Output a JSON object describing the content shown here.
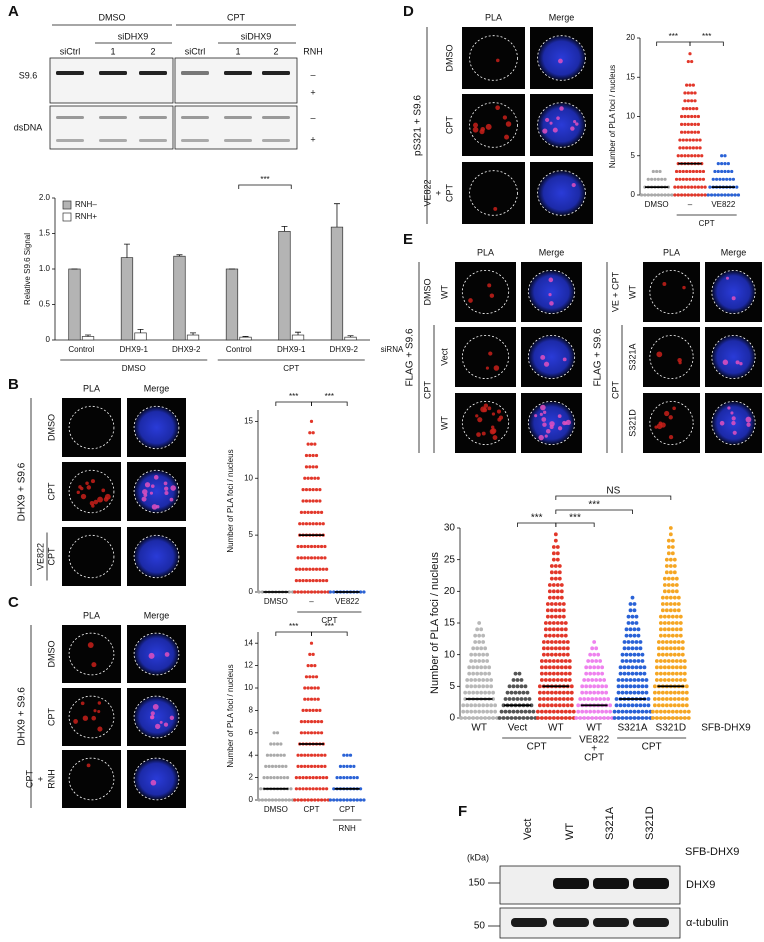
{
  "panel_letters": [
    "A",
    "B",
    "C",
    "D",
    "E",
    "F"
  ],
  "blot_A": {
    "groups": [
      "DMSO",
      "CPT"
    ],
    "sub": "siDHX9",
    "lanes": [
      "siCtrl",
      "1",
      "2",
      "siCtrl",
      "1",
      "2"
    ],
    "rnh": "RNH",
    "rows": [
      "S9.6",
      "dsDNA"
    ],
    "signs": [
      "–",
      "+",
      "–",
      "+"
    ]
  },
  "micro": {
    "B": {
      "columns": [
        "PLA",
        "Merge"
      ],
      "side": "DHX9 + S9.6",
      "rows": [
        [
          "DMSO"
        ],
        [
          "CPT"
        ],
        [
          "VE822",
          "CPT"
        ]
      ]
    },
    "C": {
      "columns": [
        "PLA",
        "Merge"
      ],
      "side": "DHX9 + S9.6",
      "rows": [
        [
          "DMSO"
        ],
        [
          "CPT"
        ],
        [
          "CPT",
          "+",
          "RNH"
        ]
      ]
    },
    "D": {
      "columns": [
        "PLA",
        "Merge"
      ],
      "side": "pS321 + S9.6",
      "rows": [
        [
          "DMSO"
        ],
        [
          "CPT"
        ],
        [
          "VE822",
          "+",
          "CPT"
        ]
      ]
    },
    "E_left": {
      "columns": [
        "PLA",
        "Merge"
      ],
      "side": "FLAG + S9.6",
      "groups": [
        "DMSO",
        "CPT"
      ],
      "rows": [
        "WT",
        "Vect",
        "WT"
      ]
    },
    "E_right": {
      "columns": [
        "PLA",
        "Merge"
      ],
      "side": "FLAG + S9.6",
      "groups": [
        "VE + CPT",
        "CPT"
      ],
      "rows": [
        "WT",
        "S321A",
        "S321D"
      ]
    }
  },
  "chart_data": [
    {
      "type": "bar",
      "ylabel": "Relative S9.6 Signal",
      "xlabel": "siRNA",
      "categories": [
        "Control",
        "DHX9-1",
        "DHX9-2",
        "Control",
        "DHX9-1",
        "DHX9-2"
      ],
      "series": [
        {
          "name": "RNH–",
          "color": "#b4b4b4",
          "values": [
            1.0,
            1.16,
            1.18,
            1.0,
            1.53,
            1.59
          ],
          "errors": [
            0,
            0.19,
            0.02,
            0,
            0.07,
            0.33
          ]
        },
        {
          "name": "RNH+",
          "color": "#ffffff",
          "values": [
            0.05,
            0.1,
            0.07,
            0.04,
            0.07,
            0.04
          ],
          "errors": [
            0.02,
            0.05,
            0.03,
            0.01,
            0.04,
            0.02
          ]
        }
      ],
      "ylim": [
        0,
        2.0
      ],
      "yticks": [
        0,
        0.5,
        {
          "value": 1,
          "label": "1.0"
        },
        1.5,
        {
          "value": 2,
          "label": "2.0"
        }
      ],
      "group_labels": [
        {
          "label": "DMSO"
        },
        {
          "label": "CPT"
        }
      ],
      "significance": [
        {
          "label": "***"
        }
      ]
    },
    {
      "type": "dot",
      "ylabel": "Number of PLA foci / nucleus",
      "categories": [
        "DMSO",
        "–",
        "VE822"
      ],
      "series": [
        {
          "color": "#aaaaaa",
          "levels": [
            0
          ],
          "median": 0
        },
        {
          "color": "#e2372a",
          "levels": [
            0,
            1,
            2,
            3,
            4,
            5,
            6,
            7,
            8,
            9,
            10,
            11,
            12,
            13,
            14,
            15
          ],
          "median": 5
        },
        {
          "color": "#2a62d6",
          "levels": [
            0
          ],
          "median": 0
        }
      ],
      "ylim": [
        0,
        16
      ],
      "yticks": [
        0,
        5,
        10,
        15
      ],
      "group_labels": [
        {
          "label": "CPT"
        }
      ],
      "significance": [
        {
          "label": "***"
        },
        {
          "label": "***"
        }
      ]
    },
    {
      "type": "dot",
      "ylabel": "Number of PLA foci / nucleus",
      "categories": [
        "DMSO",
        "CPT",
        "CPT"
      ],
      "series": [
        {
          "color": "#aaaaaa",
          "levels": [
            0,
            1,
            2,
            3,
            4,
            5,
            6
          ],
          "median": 1
        },
        {
          "color": "#e2372a",
          "levels": [
            0,
            1,
            2,
            3,
            4,
            5,
            6,
            7,
            8,
            9,
            10,
            11,
            12,
            13,
            14
          ],
          "median": 5
        },
        {
          "color": "#2a62d6",
          "levels": [
            0,
            1,
            2,
            3,
            4
          ],
          "median": 1
        }
      ],
      "ylim": [
        0,
        15
      ],
      "yticks": [
        0,
        2,
        4,
        6,
        8,
        10,
        12,
        14
      ],
      "group_labels": [
        {
          "label": "RNH"
        }
      ],
      "significance": [
        {
          "label": "***"
        },
        {
          "label": "***"
        }
      ]
    },
    {
      "type": "dot",
      "ylabel": "Number of PLA foci / nucleus",
      "categories": [
        "DMSO",
        "–",
        "VE822"
      ],
      "series": [
        {
          "color": "#aaaaaa",
          "levels": [
            0,
            1,
            2,
            3
          ],
          "median": 1
        },
        {
          "color": "#e2372a",
          "levels": [
            0,
            1,
            2,
            3,
            4,
            5,
            6,
            7,
            8,
            9,
            10,
            11,
            12,
            13,
            14,
            17,
            18
          ],
          "median": 4
        },
        {
          "color": "#2a62d6",
          "levels": [
            0,
            1,
            2,
            3,
            4,
            5
          ],
          "median": 1
        }
      ],
      "ylim": [
        0,
        20
      ],
      "yticks": [
        0,
        5,
        10,
        15,
        20
      ],
      "group_labels": [
        {
          "label": "CPT"
        }
      ],
      "significance": [
        {
          "label": "***"
        },
        {
          "label": "***"
        }
      ]
    },
    {
      "type": "dot",
      "ylabel": "Number of PLA foci / nucleus",
      "xnote": "SFB-DHX9",
      "categories": [
        "WT",
        "Vect",
        "WT",
        "WT",
        "S321A",
        "S321D"
      ],
      "series": [
        {
          "color": "#b8b8b8",
          "levels": [
            0,
            1,
            2,
            3,
            4,
            5,
            6,
            7,
            8,
            9,
            10,
            11,
            12,
            13,
            14,
            15
          ],
          "median": 3
        },
        {
          "color": "#555555",
          "levels": [
            0,
            1,
            2,
            3,
            4,
            5,
            6,
            7
          ],
          "median": 2
        },
        {
          "color": "#e2372a",
          "levels": [
            0,
            1,
            2,
            3,
            4,
            5,
            6,
            7,
            8,
            9,
            10,
            11,
            12,
            13,
            14,
            15,
            16,
            17,
            18,
            19,
            20,
            21,
            22,
            23,
            24,
            25,
            26,
            27,
            28,
            29
          ],
          "median": 5
        },
        {
          "color": "#ee82ee",
          "levels": [
            0,
            1,
            2,
            3,
            4,
            5,
            6,
            7,
            8,
            9,
            10,
            11,
            12
          ],
          "median": 2
        },
        {
          "color": "#2a62d6",
          "levels": [
            0,
            1,
            2,
            3,
            4,
            5,
            6,
            7,
            8,
            9,
            10,
            11,
            12,
            13,
            14,
            15,
            16,
            17,
            18,
            19
          ],
          "median": 3
        },
        {
          "color": "#f5a623",
          "levels": [
            0,
            1,
            2,
            3,
            4,
            5,
            6,
            7,
            8,
            9,
            10,
            11,
            12,
            13,
            14,
            15,
            16,
            17,
            18,
            19,
            20,
            21,
            22,
            23,
            24,
            25,
            26,
            27,
            28,
            29,
            30
          ],
          "median": 5
        }
      ],
      "ylim": [
        0,
        30
      ],
      "yticks": [
        0,
        5,
        10,
        15,
        20,
        25,
        30
      ],
      "group_labels": [
        {
          "label": "CPT"
        },
        {
          "label": [
            "VE822",
            "+",
            "CPT"
          ]
        },
        {
          "label": "CPT"
        }
      ],
      "significance": [
        {
          "label": "***"
        },
        {
          "label": "***"
        },
        {
          "label": "***"
        },
        {
          "label": "NS"
        }
      ]
    }
  ],
  "blot_F": {
    "kda": "(kDa)",
    "lanes": [
      "Vect",
      "WT",
      "S321A",
      "S321D"
    ],
    "lane_title": "SFB-DHX9",
    "markers": [
      "150",
      "50"
    ],
    "proteins": [
      "DHX9",
      "α-tubulin"
    ]
  }
}
